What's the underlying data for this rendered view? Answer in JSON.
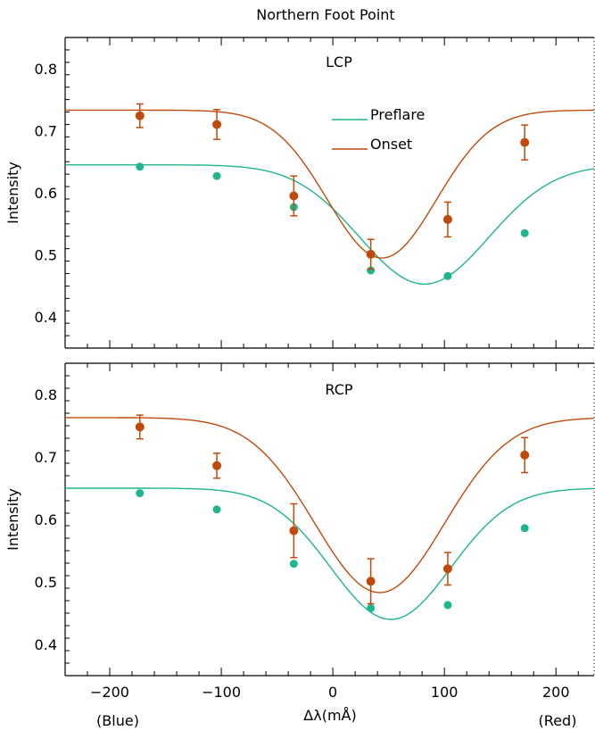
{
  "title": "Northern Foot Point",
  "colors": {
    "preflare": "#1fb58f",
    "onset": "#c04a0c",
    "axis": "#000000"
  },
  "chart_data": [
    {
      "type": "scatter",
      "panel_label": "LCP",
      "ylabel": "Intensity",
      "xlabel": "",
      "xlim": [
        -240,
        235
      ],
      "ylim": [
        0.35,
        0.85
      ],
      "xticks": [
        -200,
        -100,
        0,
        100,
        200
      ],
      "yticks": [
        0.4,
        0.5,
        0.6,
        0.7,
        0.8
      ],
      "legend": {
        "placement": "top-center",
        "entries": [
          "Preflare",
          "Onset"
        ]
      },
      "series": [
        {
          "name": "Preflare",
          "points": [
            {
              "x": -173,
              "y": 0.642
            },
            {
              "x": -104,
              "y": 0.627
            },
            {
              "x": -35,
              "y": 0.577
            },
            {
              "x": 34,
              "y": 0.475
            },
            {
              "x": 103,
              "y": 0.466
            },
            {
              "x": 172,
              "y": 0.535
            }
          ],
          "fit": {
            "base": 0.645,
            "depth": 0.192,
            "center": 82,
            "sigma": 82
          }
        },
        {
          "name": "Onset",
          "points": [
            {
              "x": -173,
              "y": 0.724,
              "err": 0.019
            },
            {
              "x": -104,
              "y": 0.71,
              "err": 0.024
            },
            {
              "x": -35,
              "y": 0.595,
              "err": 0.032
            },
            {
              "x": 34,
              "y": 0.501,
              "err": 0.024
            },
            {
              "x": 103,
              "y": 0.557,
              "err": 0.028
            },
            {
              "x": 172,
              "y": 0.681,
              "err": 0.028
            }
          ],
          "fit": {
            "base": 0.733,
            "depth": 0.238,
            "center": 44,
            "sigma": 69
          }
        }
      ]
    },
    {
      "type": "scatter",
      "panel_label": "RCP",
      "ylabel": "Intensity",
      "xlabel": "Δλ(mÅ)",
      "xlabel_left": "(Blue)",
      "xlabel_right": "(Red)",
      "xlim": [
        -240,
        235
      ],
      "ylim": [
        0.35,
        0.85
      ],
      "xticks": [
        -200,
        -100,
        0,
        100,
        200
      ],
      "yticks": [
        0.4,
        0.5,
        0.6,
        0.7,
        0.8
      ],
      "series": [
        {
          "name": "Preflare",
          "points": [
            {
              "x": -173,
              "y": 0.642
            },
            {
              "x": -104,
              "y": 0.616
            },
            {
              "x": -35,
              "y": 0.529
            },
            {
              "x": 34,
              "y": 0.458
            },
            {
              "x": 103,
              "y": 0.463
            },
            {
              "x": 172,
              "y": 0.586
            }
          ],
          "fit": {
            "base": 0.65,
            "depth": 0.21,
            "center": 52,
            "sigma": 76
          }
        },
        {
          "name": "Onset",
          "points": [
            {
              "x": -173,
              "y": 0.748,
              "err": 0.019
            },
            {
              "x": -104,
              "y": 0.686,
              "err": 0.02
            },
            {
              "x": -35,
              "y": 0.582,
              "err": 0.043
            },
            {
              "x": 34,
              "y": 0.501,
              "err": 0.036
            },
            {
              "x": 103,
              "y": 0.521,
              "err": 0.026
            },
            {
              "x": 172,
              "y": 0.703,
              "err": 0.028
            }
          ],
          "fit": {
            "base": 0.763,
            "depth": 0.28,
            "center": 42,
            "sigma": 82
          }
        }
      ]
    }
  ]
}
